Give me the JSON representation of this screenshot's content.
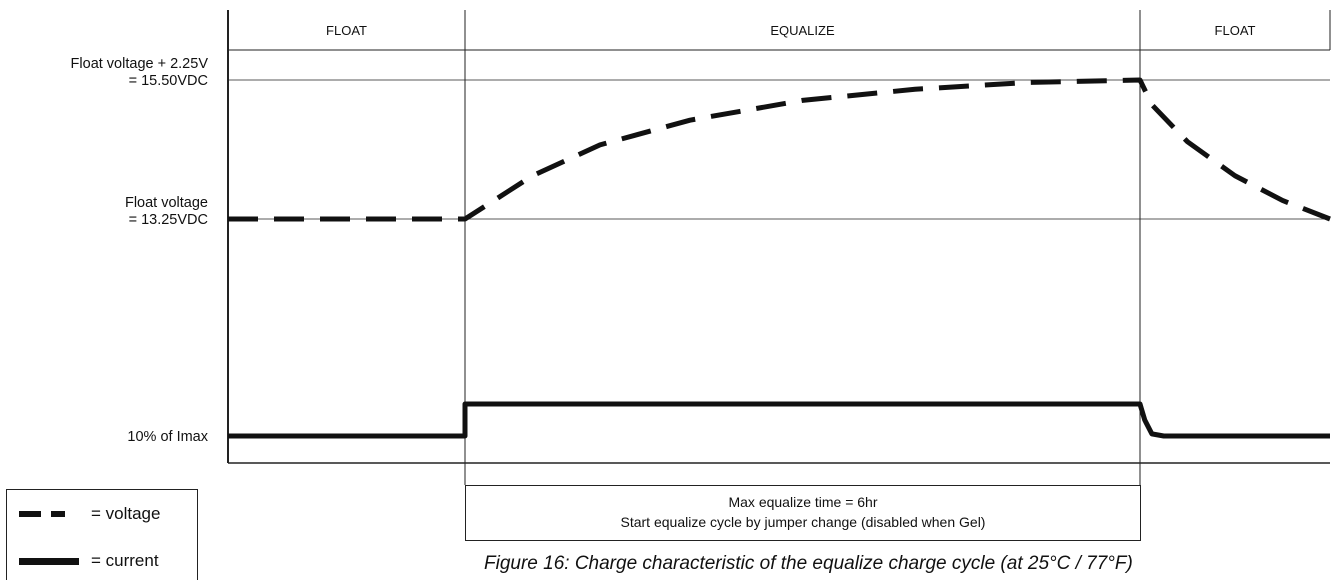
{
  "chart_data": {
    "type": "line",
    "title": "",
    "xlabel": "",
    "ylabel": "",
    "x_phase_boundaries": [
      0,
      1,
      4,
      4.8
    ],
    "phases": [
      {
        "label": "FLOAT",
        "start": 0,
        "end": 1
      },
      {
        "label": "EQUALIZE",
        "start": 1,
        "end": 4
      },
      {
        "label": "FLOAT",
        "start": 4,
        "end": 4.8
      }
    ],
    "y_levels": {
      "equalize_voltage": {
        "lines": [
          "Float voltage + 2.25V",
          "= 15.50VDC"
        ],
        "value": 15.5
      },
      "float_voltage": {
        "lines": [
          "Float voltage",
          "= 13.25VDC"
        ],
        "value": 13.25
      },
      "current_float": {
        "lines": [
          "10% of Imax"
        ],
        "value": 10
      }
    },
    "series": [
      {
        "name": "voltage",
        "style": "dashed",
        "points": [
          [
            0,
            13.25
          ],
          [
            1,
            13.25
          ],
          [
            1.3,
            13.95
          ],
          [
            1.6,
            14.45
          ],
          [
            2.0,
            14.85
          ],
          [
            2.5,
            15.17
          ],
          [
            3.0,
            15.35
          ],
          [
            3.5,
            15.46
          ],
          [
            4.0,
            15.5
          ],
          [
            4.05,
            15.1
          ],
          [
            4.2,
            14.5
          ],
          [
            4.4,
            13.95
          ],
          [
            4.6,
            13.55
          ],
          [
            4.8,
            13.25
          ]
        ]
      },
      {
        "name": "current",
        "style": "solid",
        "points": [
          [
            0,
            10
          ],
          [
            1,
            10
          ],
          [
            1,
            16
          ],
          [
            4,
            16
          ],
          [
            4.02,
            13
          ],
          [
            4.05,
            10.4
          ],
          [
            4.1,
            10
          ],
          [
            4.8,
            10
          ]
        ]
      }
    ],
    "legend": {
      "placement": "bottom-left",
      "voltage_label": "= voltage",
      "current_label": "= current"
    },
    "annotation": {
      "line1": "Max equalize time = 6hr",
      "line2": "Start equalize cycle by jumper change (disabled when Gel)"
    },
    "caption": "Figure 16: Charge characteristic of the equalize charge cycle (at 25°C / 77°F)"
  }
}
